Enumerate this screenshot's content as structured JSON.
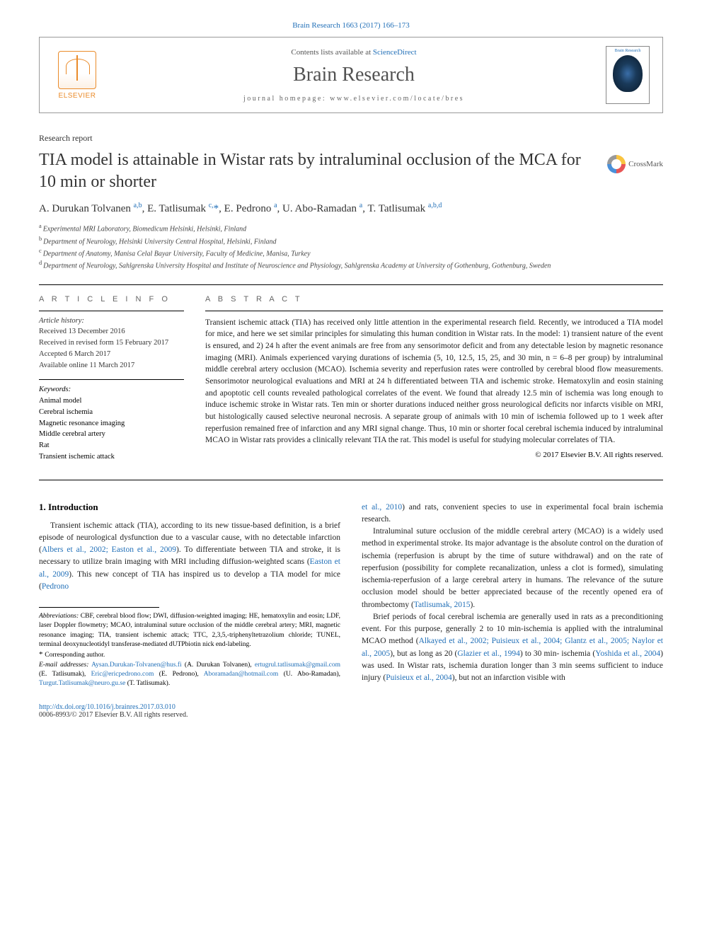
{
  "citation": "Brain Research 1663 (2017) 166–173",
  "header": {
    "contents_prefix": "Contents lists available at ",
    "contents_link": "ScienceDirect",
    "journal_name": "Brain Research",
    "homepage_prefix": "journal homepage: ",
    "homepage_url": "www.elsevier.com/locate/bres",
    "elsevier_label": "ELSEVIER",
    "cover_title": "Brain Research"
  },
  "report_type": "Research report",
  "title": "TIA model is attainable in Wistar rats by intraluminal occlusion of the MCA for 10 min or shorter",
  "crossmark_label": "CrossMark",
  "authors_html": "A. Durukan Tolvanen <sup>a,b</sup>, E. Tatlisumak <sup>c,</sup><span class='star'>*</span>, E. Pedrono <sup>a</sup>, U. Abo-Ramadan <sup>a</sup>, T. Tatlisumak <sup>a,b,d</sup>",
  "affiliations": [
    "a|Experimental MRI Laboratory, Biomedicum Helsinki, Helsinki, Finland",
    "b|Department of Neurology, Helsinki University Central Hospital, Helsinki, Finland",
    "c|Department of Anatomy, Manisa Celal Bayar University, Faculty of Medicine, Manisa, Turkey",
    "d|Department of Neurology, Sahlgrenska University Hospital and Institute of Neuroscience and Physiology, Sahlgrenska Academy at University of Gothenburg, Gothenburg, Sweden"
  ],
  "article_info_heading": "A R T I C L E   I N F O",
  "history_heading": "Article history:",
  "history": [
    "Received 13 December 2016",
    "Received in revised form 15 February 2017",
    "Accepted 6 March 2017",
    "Available online 11 March 2017"
  ],
  "keywords_heading": "Keywords:",
  "keywords": [
    "Animal model",
    "Cerebral ischemia",
    "Magnetic resonance imaging",
    "Middle cerebral artery",
    "Rat",
    "Transient ischemic attack"
  ],
  "abstract_heading": "A B S T R A C T",
  "abstract": "Transient ischemic attack (TIA) has received only little attention in the experimental research field. Recently, we introduced a TIA model for mice, and here we set similar principles for simulating this human condition in Wistar rats. In the model: 1) transient nature of the event is ensured, and 2) 24 h after the event animals are free from any sensorimotor deficit and from any detectable lesion by magnetic resonance imaging (MRI). Animals experienced varying durations of ischemia (5, 10, 12.5, 15, 25, and 30 min, n = 6–8 per group) by intraluminal middle cerebral artery occlusion (MCAO). Ischemia severity and reperfusion rates were controlled by cerebral blood flow measurements. Sensorimotor neurological evaluations and MRI at 24 h differentiated between TIA and ischemic stroke. Hematoxylin and eosin staining and apoptotic cell counts revealed pathological correlates of the event. We found that already 12.5 min of ischemia was long enough to induce ischemic stroke in Wistar rats. Ten min or shorter durations induced neither gross neurological deficits nor infarcts visible on MRI, but histologically caused selective neuronal necrosis. A separate group of animals with 10 min of ischemia followed up to 1 week after reperfusion remained free of infarction and any MRI signal change. Thus, 10 min or shorter focal cerebral ischemia induced by intraluminal MCAO in Wistar rats provides a clinically relevant TIA the rat. This model is useful for studying molecular correlates of TIA.",
  "copyright": "© 2017 Elsevier B.V. All rights reserved.",
  "intro_heading": "1. Introduction",
  "intro_p1_a": "Transient ischemic attack (TIA), according to its new tissue-based definition, is a brief episode of neurological dysfunction due to a vascular cause, with no detectable infarction (",
  "intro_p1_link1": "Albers et al., 2002; Easton et al., 2009",
  "intro_p1_b": "). To differentiate between TIA and stroke, it is necessary to utilize brain imaging with MRI including diffusion-weighted scans (",
  "intro_p1_link2": "Easton et al., 2009",
  "intro_p1_c": "). This new concept of TIA has inspired us to develop a TIA model for mice (",
  "intro_p1_link3": "Pedrono",
  "col2_p1_link1": "et al., 2010",
  "col2_p1_a": ") and rats, convenient species to use in experimental focal brain ischemia research.",
  "col2_p2_a": "Intraluminal suture occlusion of the middle cerebral artery (MCAO) is a widely used method in experimental stroke. Its major advantage is the absolute control on the duration of ischemia (reperfusion is abrupt by the time of suture withdrawal) and on the rate of reperfusion (possibility for complete recanalization, unless a clot is formed), simulating ischemia-reperfusion of a large cerebral artery in humans. The relevance of the suture occlusion model should be better appreciated because of the recently opened era of thrombectomy (",
  "col2_p2_link1": "Tatlisumak, 2015",
  "col2_p2_b": ").",
  "col2_p3_a": "Brief periods of focal cerebral ischemia are generally used in rats as a preconditioning event. For this purpose, generally 2 to 10 min-ischemia is applied with the intraluminal MCAO method (",
  "col2_p3_link1": "Alkayed et al., 2002; Puisieux et al., 2004; Glantz et al., 2005; Naylor et al., 2005",
  "col2_p3_b": "), but as long as 20 (",
  "col2_p3_link2": "Glazier et al., 1994",
  "col2_p3_c": ") to 30 min- ischemia (",
  "col2_p3_link3": "Yoshida et al., 2004",
  "col2_p3_d": ") was used. In Wistar rats, ischemia duration longer than 3 min seems sufficient to induce injury (",
  "col2_p3_link4": "Puisieux et al., 2004",
  "col2_p3_e": "), but not an infarction visible with",
  "abbrev_label": "Abbreviations:",
  "abbrev_text": " CBF, cerebral blood flow; DWI, diffusion-weighted imaging; HE, hematoxylin and eosin; LDF, laser Doppler flowmetry; MCAO, intraluminal suture occlusion of the middle cerebral artery; MRI, magnetic resonance imaging; TIA, transient ischemic attack; TTC, 2,3,5,-triphenyltetrazolium chloride; TUNEL, terminal deoxynucleotidyl transferase-mediated dUTPbiotin nick end-labeling.",
  "corresponding": "Corresponding author.",
  "emails_label": "E-mail addresses:",
  "emails": [
    {
      "addr": "Aysan.Durukan-Tolvanen@hus.fi",
      "who": " (A. Durukan Tolvanen), "
    },
    {
      "addr": "ertugrul.tatlisumak@gmail.com",
      "who": " (E. Tatlisumak), "
    },
    {
      "addr": "Eric@ericpedrono.com",
      "who": " (E. Pedrono), "
    },
    {
      "addr": "Aboramadan@hotmail.com",
      "who": " (U. Abo-Ramadan), "
    },
    {
      "addr": "Turgut.Tatlisumak@neuro.gu.se",
      "who": " (T. Tatlisumak)."
    }
  ],
  "doi": "http://dx.doi.org/10.1016/j.brainres.2017.03.010",
  "issn_line": "0006-8993/© 2017 Elsevier B.V. All rights reserved.",
  "colors": {
    "link": "#2270b8",
    "elsevier_orange": "#ea8b2a",
    "text": "#222222",
    "border": "#000000"
  }
}
